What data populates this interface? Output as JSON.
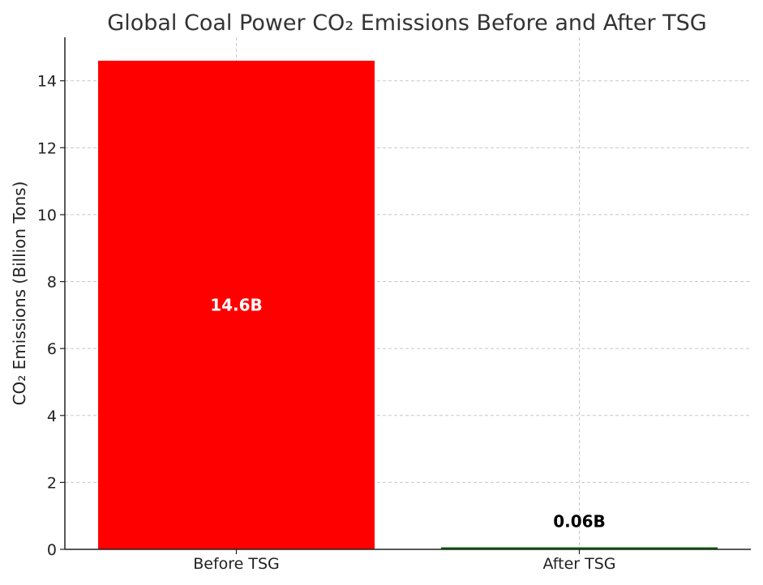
{
  "chart_data": {
    "type": "bar",
    "title": "Global Coal Power CO₂ Emissions Before and After TSG",
    "xlabel": "",
    "ylabel": "CO₂ Emissions (Billion Tons)",
    "categories": [
      "Before TSG",
      "After TSG"
    ],
    "values": [
      14.6,
      0.06
    ],
    "value_labels": [
      "14.6B",
      "0.06B"
    ],
    "value_label_colors": [
      "#ffffff",
      "#000000"
    ],
    "bar_colors": [
      "#ff0000",
      "#006400"
    ],
    "ylim": [
      0,
      15.3
    ],
    "yticks": [
      0,
      2,
      4,
      6,
      8,
      10,
      12,
      14
    ],
    "grid": true,
    "legend": "none"
  }
}
